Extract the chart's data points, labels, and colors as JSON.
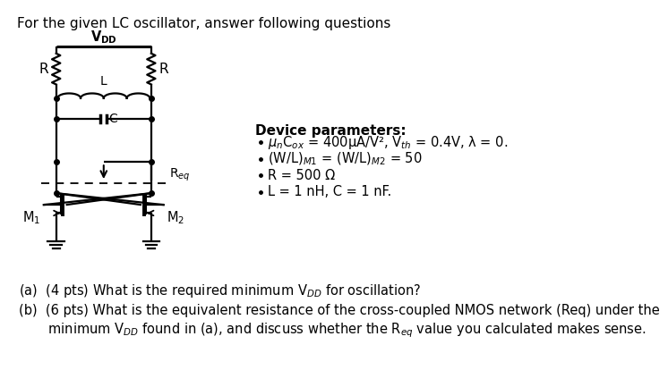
{
  "title": "For the given LC oscillator, answer following questions",
  "title_fontsize": 11,
  "bg_color": "#ffffff",
  "vdd_label": "V$_{\\mathbf{DD}}$",
  "left_R_label": "R",
  "right_R_label": "R",
  "L_label": "L",
  "C_label": "C",
  "Req_label": "R$_{eq}$",
  "M1_label": "M$_1$",
  "M2_label": "M$_2$",
  "device_params_title": "Device parameters:",
  "param1": "$\\mu_n$C$_{ox}$ = 400μA/V², V$_{th}$ = 0.4V, λ = 0.",
  "param2": "(W/L)$_{M1}$ = (W/L)$_{M2}$ = 50",
  "param3": "R = 500 Ω",
  "param4": "L = 1 nH, C = 1 nF.",
  "question_a": "(a)  (4 pts) What is the required minimum V$_{DD}$ for oscillation?",
  "question_b1": "(b)  (6 pts) What is the equivalent resistance of the cross-coupled NMOS network (Req) under the",
  "question_b2": "       minimum V$_{DD}$ found in (a), and discuss whether the R$_{eq}$ value you calculated makes sense."
}
